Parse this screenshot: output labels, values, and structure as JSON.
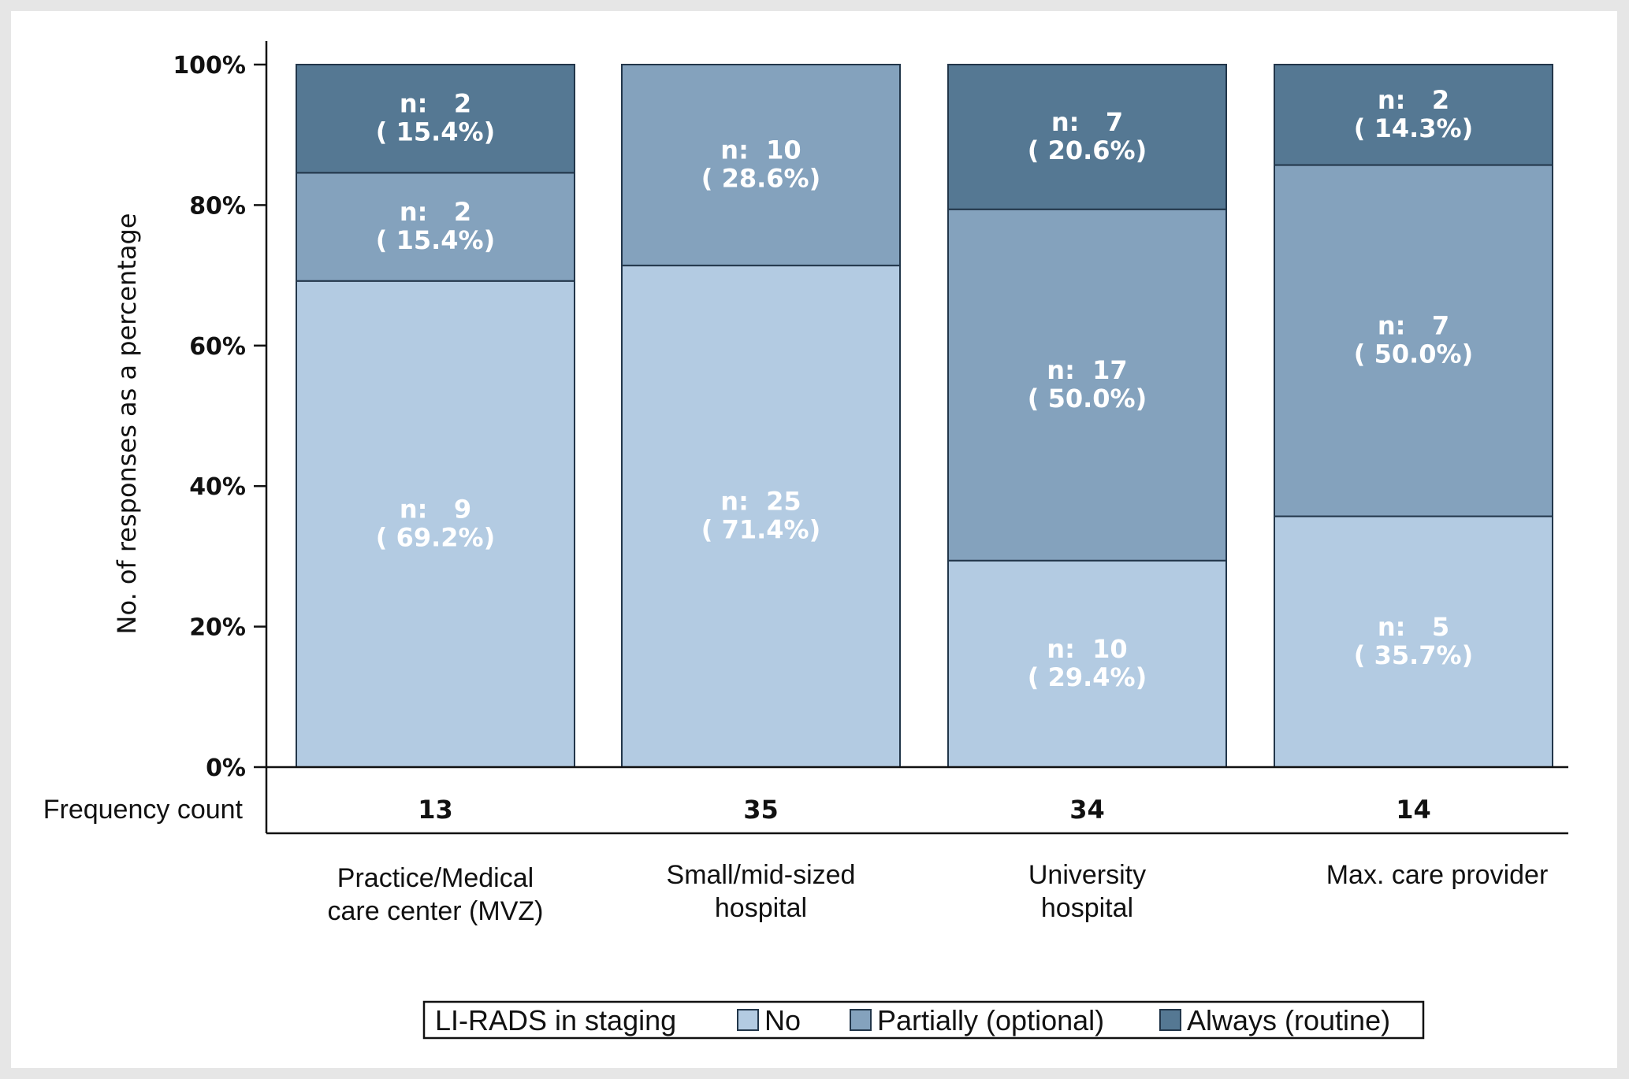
{
  "chart_data": {
    "type": "bar",
    "stacked": true,
    "ylabel": "No. of responses as a percentage",
    "ylim": [
      0,
      100
    ],
    "yticks": [
      "0%",
      "20%",
      "40%",
      "60%",
      "80%",
      "100%"
    ],
    "ytick_values": [
      0,
      20,
      40,
      60,
      80,
      100
    ],
    "count_label": "Frequency count",
    "categories": [
      [
        "Practice/Medical",
        "care center (MVZ)"
      ],
      [
        "Small/mid-sized",
        "hospital"
      ],
      [
        "University",
        "hospital"
      ],
      [
        "Max. care provider"
      ]
    ],
    "frequency_counts": [
      "13",
      "35",
      "34",
      "14"
    ],
    "legend_title": "LI-RADS in staging",
    "legend_position": "bottom",
    "series": [
      {
        "name": "No",
        "color": "#b3cbe2",
        "values": [
          69.2,
          71.4,
          29.4,
          35.7
        ],
        "n_labels": [
          "n:   9",
          "n:  25",
          "n:  10",
          "n:   5"
        ],
        "pct_labels": [
          "( 69.2%)",
          "( 71.4%)",
          "( 29.4%)",
          "( 35.7%)"
        ]
      },
      {
        "name": "Partially (optional)",
        "color": "#84a2bd",
        "values": [
          15.4,
          28.6,
          50.0,
          50.0
        ],
        "n_labels": [
          "n:   2",
          "n:  10",
          "n:  17",
          "n:   7"
        ],
        "pct_labels": [
          "( 15.4%)",
          "( 28.6%)",
          "( 50.0%)",
          "( 50.0%)"
        ]
      },
      {
        "name": "Always (routine)",
        "color": "#557893",
        "values": [
          15.4,
          0,
          20.6,
          14.3
        ],
        "n_labels": [
          "n:   2",
          "",
          "n:   7",
          "n:   2"
        ],
        "pct_labels": [
          "( 15.4%)",
          "",
          "( 20.6%)",
          "( 14.3%)"
        ]
      }
    ],
    "grid": false
  }
}
